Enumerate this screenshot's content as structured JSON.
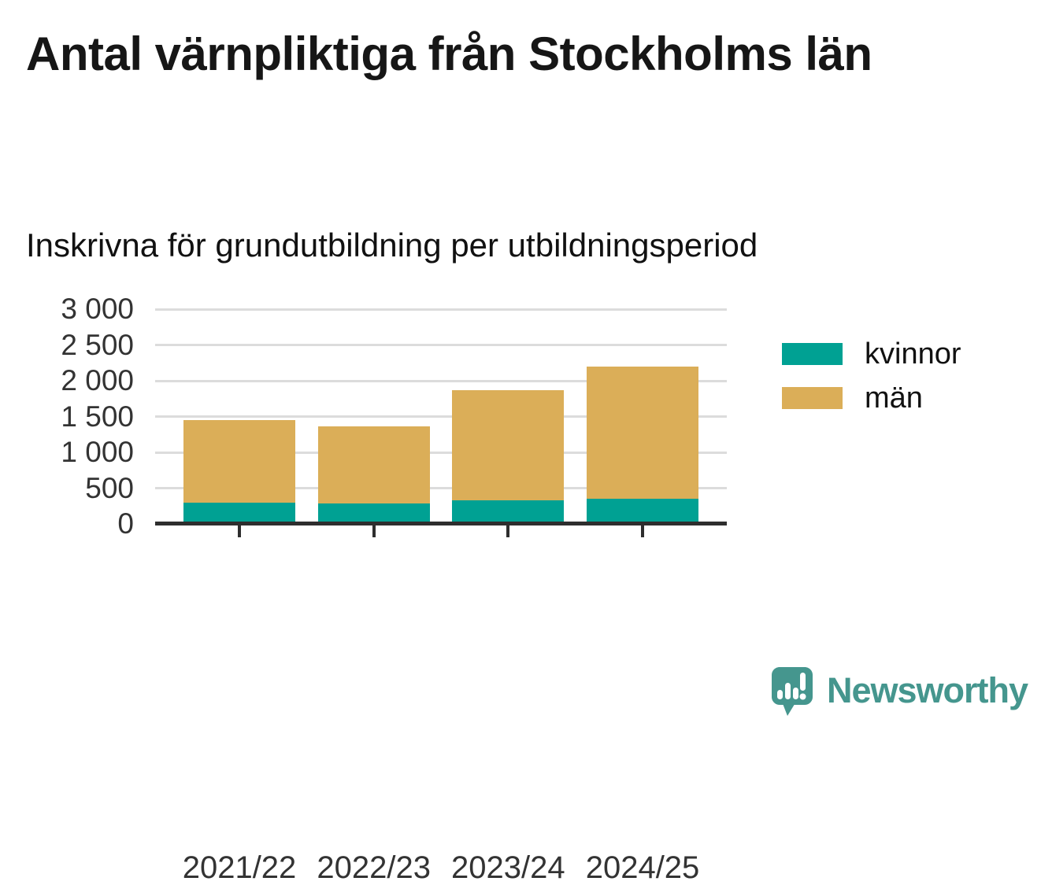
{
  "title": "Antal värnpliktiga från Stockholms län",
  "subtitle": "Inskrivna för grundutbildning per utbildningsperiod",
  "chart_data": {
    "type": "bar",
    "stacked": true,
    "title": "Antal värnpliktiga från Stockholms län",
    "subtitle": "Inskrivna för grundutbildning per utbildningsperiod",
    "categories": [
      "2021/22",
      "2022/23",
      "2023/24",
      "2024/25"
    ],
    "series": [
      {
        "name": "kvinnor",
        "color": "#00A193",
        "values": [
          300,
          290,
          330,
          350
        ]
      },
      {
        "name": "män",
        "color": "#DBAE58",
        "values": [
          1150,
          1070,
          1540,
          1850
        ]
      }
    ],
    "stack_totals": [
      1450,
      1360,
      1870,
      2200
    ],
    "ylim": [
      0,
      3000
    ],
    "yticks": [
      {
        "value": 0,
        "label": "0"
      },
      {
        "value": 500,
        "label": "500"
      },
      {
        "value": 1000,
        "label": "1 000"
      },
      {
        "value": 1500,
        "label": "1 500"
      },
      {
        "value": 2000,
        "label": "2 000"
      },
      {
        "value": 2500,
        "label": "2 500"
      },
      {
        "value": 3000,
        "label": "3 000"
      }
    ],
    "xlabel": "",
    "ylabel": "",
    "grid": true,
    "legend_position": "right"
  },
  "legend": {
    "items": [
      {
        "label": "kvinnor",
        "color": "#00A193"
      },
      {
        "label": "män",
        "color": "#DBAE58"
      }
    ]
  },
  "branding": {
    "logo_text": "Newsworthy",
    "logo_color": "#45968E",
    "logo_icon": "speech-bubble-bar-chart-exclamation-icon"
  },
  "colors": {
    "background": "#FFFFFF",
    "title_text": "#161616",
    "axis_text": "#333333",
    "axis_line": "#2E2E2E",
    "gridline": "#DCDCDC"
  }
}
